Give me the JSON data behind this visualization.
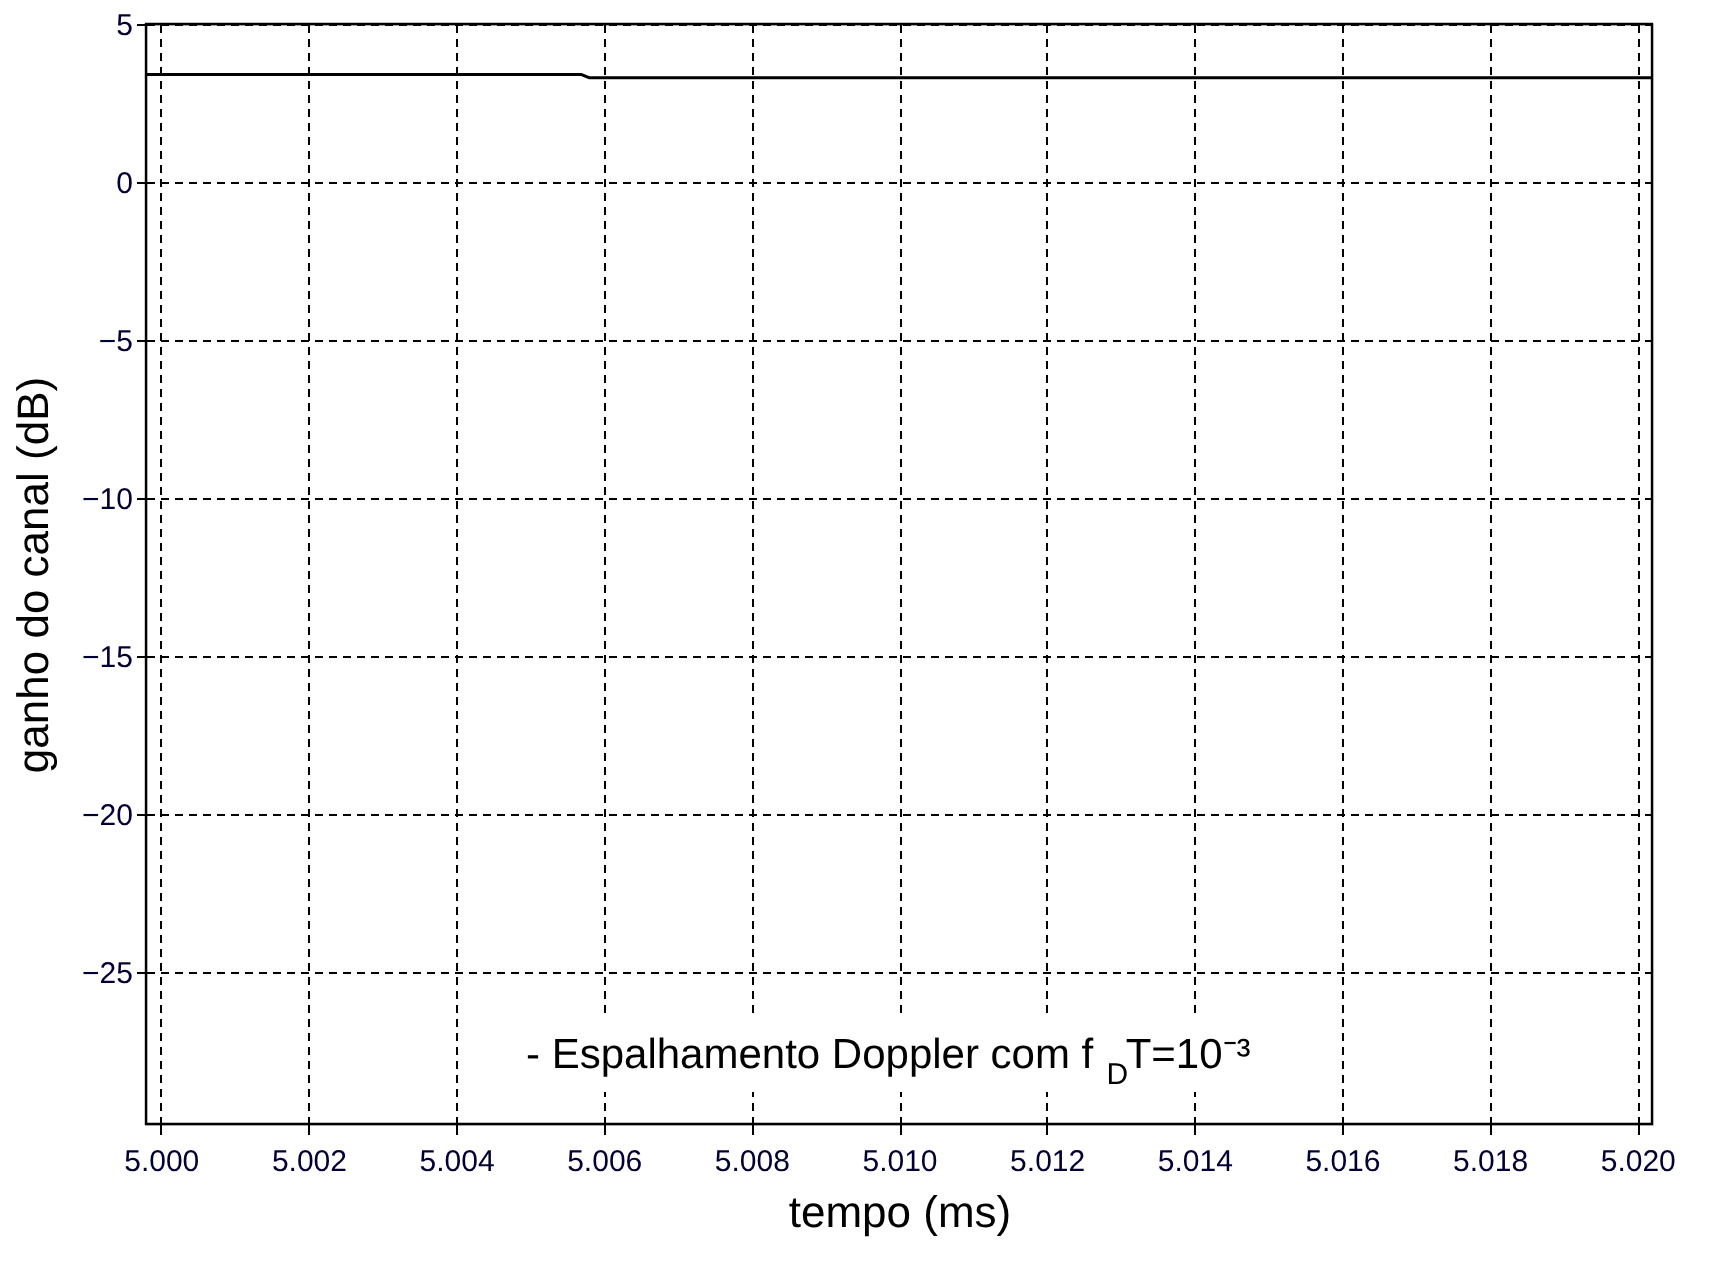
{
  "chart_data": {
    "type": "line",
    "xlabel": "tempo (ms)",
    "ylabel": "ganho do canal (dB)",
    "annotations": [
      "- Espalhamento Doppler  com f$_{D}$T=10⁻³"
    ],
    "series": [
      {
        "color": "#000000",
        "x": [
          4.9998,
          5.0057,
          5.0058,
          5.0202
        ],
        "values": [
          3.4,
          3.4,
          3.3,
          3.3
        ]
      }
    ],
    "xlim": [
      4.9998,
      5.0202
    ],
    "xticks": [
      {
        "value": 5.0,
        "label": "5.000"
      },
      {
        "value": 5.002,
        "label": "5.002"
      },
      {
        "value": 5.004,
        "label": "5.004"
      },
      {
        "value": 5.006,
        "label": "5.006"
      },
      {
        "value": 5.008,
        "label": "5.008"
      },
      {
        "value": 5.01,
        "label": "5.010"
      },
      {
        "value": 5.012,
        "label": "5.012"
      },
      {
        "value": 5.014,
        "label": "5.014"
      },
      {
        "value": 5.016,
        "label": "5.016"
      },
      {
        "value": 5.018,
        "label": "5.018"
      },
      {
        "value": 5.02,
        "label": "5.020"
      }
    ],
    "ylim": [
      -29.8,
      5
    ],
    "yticks": [
      5,
      0,
      -5,
      -10,
      -15,
      -20,
      -25
    ],
    "grid": true,
    "marker": "none",
    "line_style": "solid"
  }
}
